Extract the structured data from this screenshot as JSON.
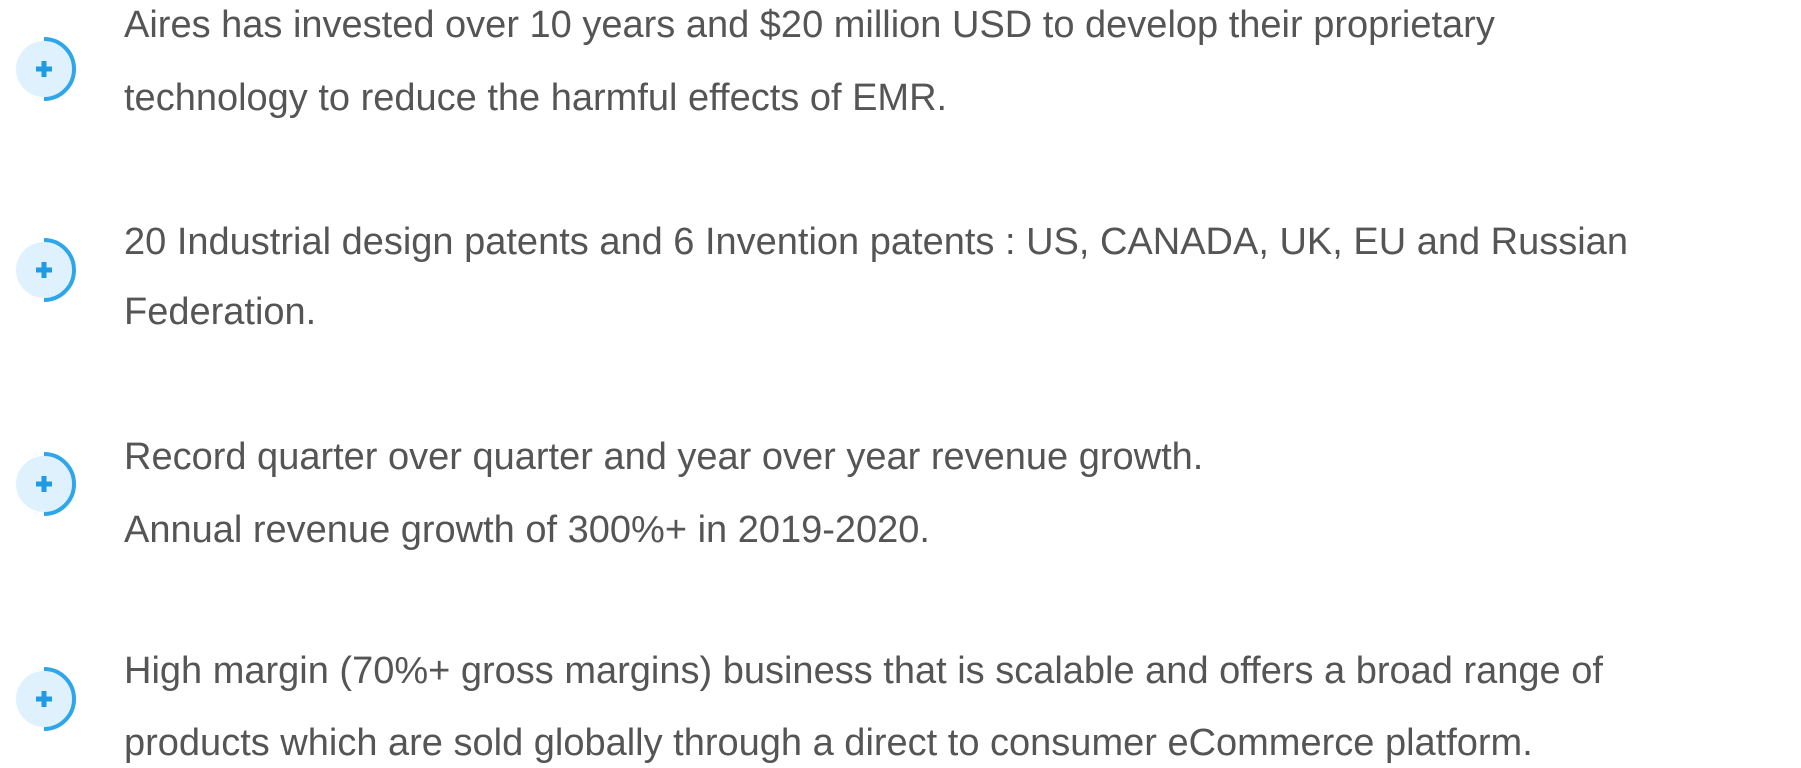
{
  "items": [
    {
      "lines": [
        "Aires has invested over 10 years and $20 million USD to develop their proprietary",
        "technology to reduce the harmful effects of EMR."
      ]
    },
    {
      "lines": [
        "20 Industrial design patents and 6 Invention patents : US, CANADA, UK, EU and Russian",
        "Federation."
      ]
    },
    {
      "lines": [
        "Record quarter over quarter and year over year revenue growth.",
        "Annual revenue growth of 300%+ in 2019-2020."
      ]
    },
    {
      "lines": [
        "High margin (70%+ gross margins) business that is scalable and offers a broad range of",
        "products which are sold globally through a direct to consumer eCommerce platform."
      ]
    }
  ]
}
